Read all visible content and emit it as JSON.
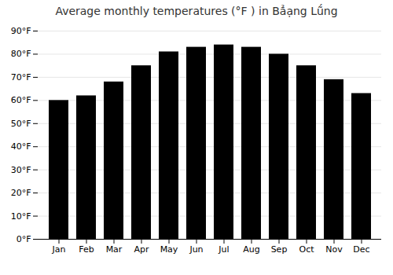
{
  "chart_data": {
    "type": "bar",
    "title": "Average monthly temperatures (°F ) in Bẳạng Lṹng",
    "categories": [
      "Jan",
      "Feb",
      "Mar",
      "Apr",
      "May",
      "Jun",
      "Jul",
      "Aug",
      "Sep",
      "Oct",
      "Nov",
      "Dec"
    ],
    "values": [
      60,
      62,
      68,
      75,
      81,
      83,
      84,
      83,
      80,
      75,
      69,
      63
    ],
    "ylim": [
      0,
      90
    ],
    "yticks": [
      {
        "value": 0,
        "label": "0°F"
      },
      {
        "value": 10,
        "label": "10°F"
      },
      {
        "value": 20,
        "label": "20°F"
      },
      {
        "value": 30,
        "label": "30°F"
      },
      {
        "value": 40,
        "label": "40°F"
      },
      {
        "value": 50,
        "label": "50°F"
      },
      {
        "value": 60,
        "label": "60°F"
      },
      {
        "value": 70,
        "label": "70°F"
      },
      {
        "value": 80,
        "label": "80°F"
      },
      {
        "value": 90,
        "label": "90°F"
      }
    ],
    "grid": true
  }
}
